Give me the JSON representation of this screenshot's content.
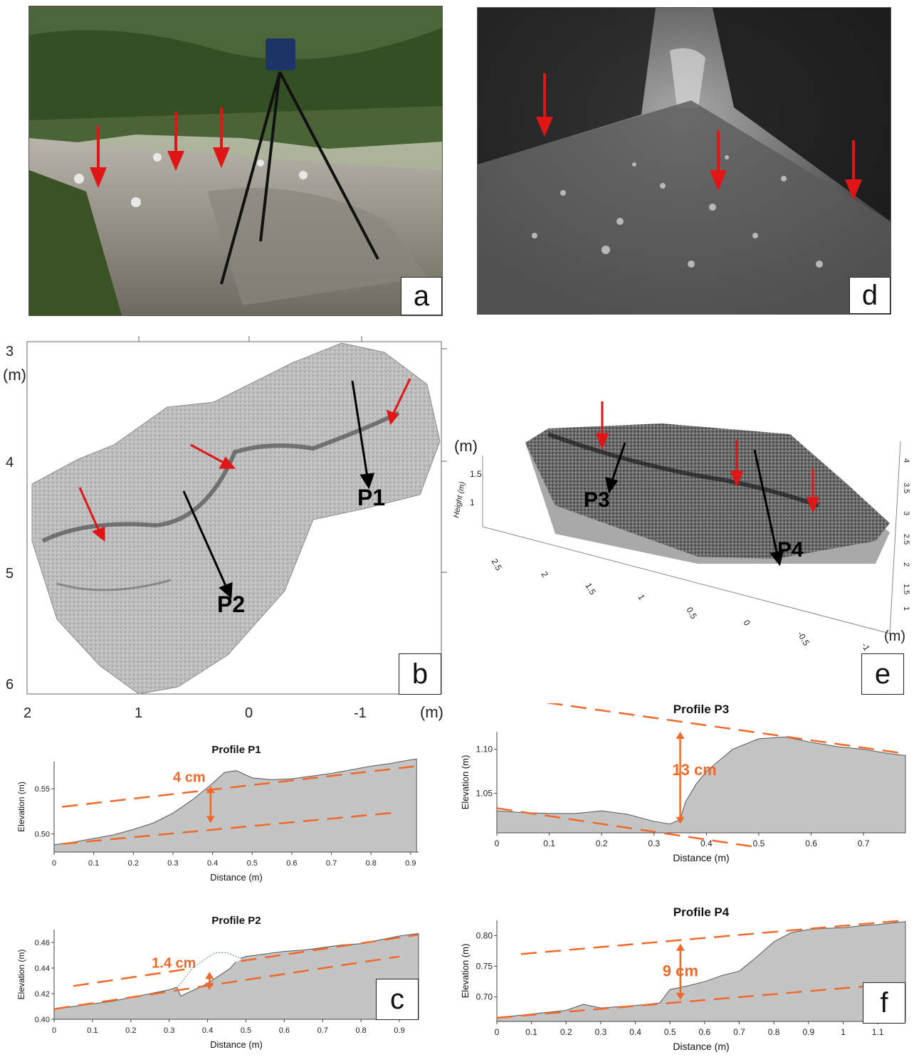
{
  "panels": {
    "a": {
      "tag": "a"
    },
    "b": {
      "tag": "b",
      "unit": "(m)",
      "y_ticks": [
        "3",
        "4",
        "5",
        "6"
      ],
      "x_ticks": [
        "2",
        "1",
        "0",
        "-1"
      ],
      "labels": {
        "p1": "P1",
        "p2": "P2"
      }
    },
    "c": {
      "tag": "c"
    },
    "d": {
      "tag": "d"
    },
    "e": {
      "tag": "e",
      "unit_top": "(m)",
      "unit_right": "(m)",
      "z_label": "Height (m)",
      "z_ticks": [
        "1.5",
        "1"
      ],
      "x_ticks": [
        "2.5",
        "2",
        "1.5",
        "1",
        "0.5",
        "0",
        "-0.5",
        "-1"
      ],
      "y_ticks": [
        "4",
        "3.5",
        "3",
        "2.5",
        "2",
        "1.5",
        "1"
      ],
      "labels": {
        "p3": "P3",
        "p4": "P4"
      }
    },
    "f": {
      "tag": "f"
    }
  },
  "chart_data": [
    {
      "type": "area",
      "title": "Profile P1",
      "xlabel": "Distance (m)",
      "ylabel": "Elevation (m)",
      "xlim": [
        0,
        0.92
      ],
      "ylim": [
        0.48,
        0.58
      ],
      "x_ticks": [
        "0",
        "0.1",
        "0.2",
        "0.3",
        "0.4",
        "0.5",
        "0.6",
        "0.7",
        "0.8",
        "0.9"
      ],
      "y_ticks": [
        "0.50",
        "0.55"
      ],
      "x": [
        0,
        0.05,
        0.1,
        0.15,
        0.2,
        0.25,
        0.3,
        0.35,
        0.4,
        0.43,
        0.46,
        0.5,
        0.55,
        0.6,
        0.65,
        0.7,
        0.75,
        0.8,
        0.85,
        0.9,
        0.915
      ],
      "y": [
        0.488,
        0.491,
        0.495,
        0.499,
        0.505,
        0.512,
        0.523,
        0.538,
        0.556,
        0.568,
        0.57,
        0.562,
        0.56,
        0.561,
        0.564,
        0.567,
        0.571,
        0.575,
        0.578,
        0.582,
        0.583
      ],
      "guides": [
        [
          [
            0.02,
            0.53
          ],
          [
            0.915,
            0.575
          ]
        ],
        [
          [
            0.02,
            0.489
          ],
          [
            0.87,
            0.524
          ]
        ]
      ],
      "annotation": {
        "text": "4 cm",
        "x": 0.395,
        "y_top": 0.553,
        "y_bottom": 0.512
      }
    },
    {
      "type": "area",
      "title": "Profile P2",
      "xlabel": "Distance (m)",
      "ylabel": "Elevation (m)",
      "xlim": [
        0,
        0.95
      ],
      "ylim": [
        0.4,
        0.47
      ],
      "x_ticks": [
        "0",
        "0.1",
        "0.2",
        "0.3",
        "0.4",
        "0.5",
        "0.6",
        "0.7",
        "0.8",
        "0.9"
      ],
      "y_ticks": [
        "0.40",
        "0.42",
        "0.44",
        "0.46"
      ],
      "x": [
        0,
        0.05,
        0.1,
        0.15,
        0.2,
        0.25,
        0.3,
        0.32,
        0.33,
        0.35,
        0.38,
        0.4,
        0.43,
        0.46,
        0.48,
        0.5,
        0.55,
        0.6,
        0.65,
        0.7,
        0.75,
        0.8,
        0.85,
        0.9,
        0.95
      ],
      "y": [
        0.408,
        0.41,
        0.412,
        0.414,
        0.417,
        0.42,
        0.423,
        0.425,
        0.418,
        0.421,
        0.425,
        0.428,
        0.434,
        0.44,
        0.447,
        0.449,
        0.451,
        0.453,
        0.454,
        0.456,
        0.458,
        0.459,
        0.462,
        0.465,
        0.467
      ],
      "guides": [
        [
          [
            0.05,
            0.426
          ],
          [
            0.95,
            0.466
          ]
        ],
        [
          [
            0.0,
            0.408
          ],
          [
            0.9,
            0.449
          ]
        ]
      ],
      "dotted_gap": [
        [
          0.32,
          0.424
        ],
        [
          0.36,
          0.44
        ],
        [
          0.42,
          0.452
        ],
        [
          0.45,
          0.452
        ],
        [
          0.49,
          0.447
        ]
      ],
      "annotation": {
        "text": "1.4 cm",
        "x": 0.405,
        "y_top": 0.437,
        "y_bottom": 0.423
      }
    },
    {
      "type": "area",
      "title": "Profile P3",
      "xlabel": "Distance (m)",
      "ylabel": "Elevation (m)",
      "xlim": [
        0,
        0.78
      ],
      "ylim": [
        1.005,
        1.12
      ],
      "x_ticks": [
        "0",
        "0.1",
        "0.2",
        "0.3",
        "0.4",
        "0.5",
        "0.6",
        "0.7"
      ],
      "y_ticks": [
        "1.05",
        "1.10"
      ],
      "x": [
        0,
        0.05,
        0.1,
        0.15,
        0.2,
        0.25,
        0.3,
        0.33,
        0.35,
        0.36,
        0.38,
        0.4,
        0.42,
        0.45,
        0.5,
        0.55,
        0.6,
        0.65,
        0.7,
        0.75,
        0.78
      ],
      "y": [
        1.03,
        1.028,
        1.027,
        1.027,
        1.03,
        1.026,
        1.018,
        1.015,
        1.02,
        1.04,
        1.06,
        1.075,
        1.085,
        1.1,
        1.112,
        1.114,
        1.108,
        1.103,
        1.1,
        1.095,
        1.093
      ],
      "guides": [
        [
          [
            0.05,
            1.157
          ],
          [
            0.78,
            1.095
          ]
        ],
        [
          [
            0.0,
            1.033
          ],
          [
            0.75,
            0.966
          ]
        ]
      ],
      "annotation": {
        "text": "13 cm",
        "x": 0.35,
        "y_top": 1.12,
        "y_bottom": 1.015
      }
    },
    {
      "type": "area",
      "title": "Profile P4",
      "xlabel": "Distance (m)",
      "ylabel": "Elevation (m)",
      "xlim": [
        0,
        1.18
      ],
      "ylim": [
        0.66,
        0.825
      ],
      "x_ticks": [
        "0",
        "0.1",
        "0.2",
        "0.3",
        "0.4",
        "0.5",
        "0.6",
        "0.7",
        "0.8",
        "0.9",
        "1",
        "1.1"
      ],
      "y_ticks": [
        "0.70",
        "0.75",
        "0.80"
      ],
      "x": [
        0,
        0.1,
        0.2,
        0.25,
        0.3,
        0.4,
        0.47,
        0.5,
        0.55,
        0.6,
        0.65,
        0.7,
        0.75,
        0.8,
        0.85,
        0.9,
        0.95,
        1.0,
        1.05,
        1.1,
        1.18
      ],
      "y": [
        0.666,
        0.672,
        0.678,
        0.688,
        0.682,
        0.686,
        0.69,
        0.712,
        0.718,
        0.725,
        0.735,
        0.742,
        0.765,
        0.79,
        0.805,
        0.81,
        0.812,
        0.813,
        0.816,
        0.818,
        0.823
      ],
      "guides": [
        [
          [
            0.07,
            0.77
          ],
          [
            1.18,
            0.825
          ]
        ],
        [
          [
            0.0,
            0.666
          ],
          [
            1.1,
            0.719
          ]
        ]
      ],
      "annotation": {
        "text": "9 cm",
        "x": 0.53,
        "y_top": 0.787,
        "y_bottom": 0.695
      }
    }
  ]
}
